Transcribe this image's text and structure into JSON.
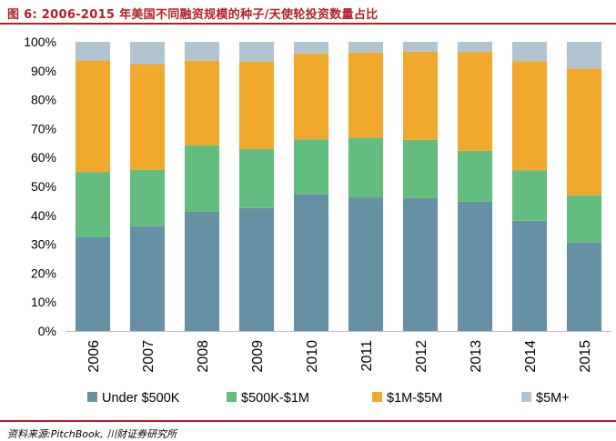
{
  "figure": {
    "title": "图 6:   2006-2015 年美国不同融资规模的种子/天使轮投资数量占比",
    "source": "资料来源:PitchBook,  川财证券研究所"
  },
  "chart_data": {
    "type": "bar",
    "stacked": true,
    "categories": [
      "2006",
      "2007",
      "2008",
      "2009",
      "2010",
      "2011",
      "2012",
      "2013",
      "2014",
      "2015"
    ],
    "series": [
      {
        "name": "Under $500K",
        "color": "#6690a3",
        "values": [
          32.5,
          36.2,
          41.2,
          42.5,
          47.3,
          46.2,
          46.0,
          44.7,
          38.1,
          30.6
        ]
      },
      {
        "name": "$500K-$1M",
        "color": "#63bd7f",
        "values": [
          22.5,
          19.5,
          23.0,
          20.4,
          19.0,
          20.6,
          20.1,
          17.6,
          17.4,
          16.3
        ]
      },
      {
        "name": "$1M-$5M",
        "color": "#f0a92c",
        "values": [
          38.6,
          36.6,
          29.3,
          30.2,
          29.7,
          29.5,
          30.5,
          34.2,
          37.8,
          43.9
        ]
      },
      {
        "name": "$5M+",
        "color": "#b0c5d1",
        "values": [
          6.4,
          7.7,
          6.5,
          6.9,
          4.0,
          3.7,
          3.4,
          3.5,
          6.7,
          9.2
        ]
      }
    ],
    "ylim": [
      0,
      100
    ],
    "yticks": [
      "0%",
      "10%",
      "20%",
      "30%",
      "40%",
      "50%",
      "60%",
      "70%",
      "80%",
      "90%",
      "100%"
    ],
    "xlabel": "",
    "ylabel": "",
    "legend_position": "bottom"
  }
}
